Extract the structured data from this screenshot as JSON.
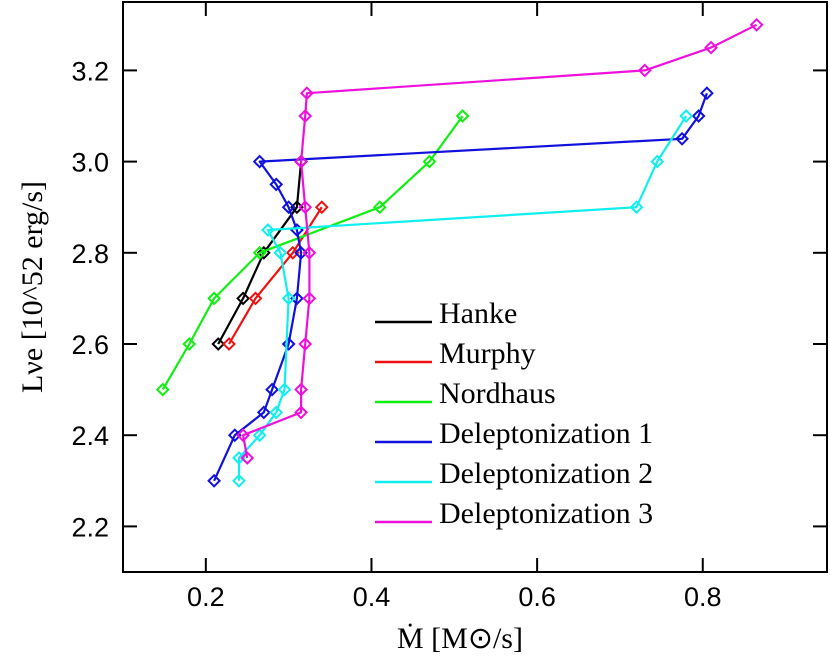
{
  "chart_data": {
    "type": "line",
    "xlabel": "Ṁ [M⊙/s]",
    "ylabel": "Lνe [10^52 erg/s]",
    "xlim": [
      0.1,
      0.95
    ],
    "ylim": [
      2.1,
      3.35
    ],
    "xticks": [
      0.2,
      0.4,
      0.6,
      0.8
    ],
    "xtick_labels": [
      "0.2",
      "0.4",
      "0.6",
      "0.8"
    ],
    "yticks": [
      2.2,
      2.4,
      2.6,
      2.8,
      3.0,
      3.2
    ],
    "ytick_labels": [
      "2.2",
      "2.4",
      "2.6",
      "2.8",
      "3.0",
      "3.2"
    ],
    "grid": false,
    "legend_position": "bottom-right",
    "marker": "diamond",
    "series": [
      {
        "name": "Hanke",
        "color": "#000000",
        "points": [
          [
            0.215,
            2.6
          ],
          [
            0.245,
            2.7
          ],
          [
            0.27,
            2.8
          ],
          [
            0.31,
            2.9
          ],
          [
            0.315,
            3.0
          ]
        ]
      },
      {
        "name": "Murphy",
        "color": "#ee1111",
        "points": [
          [
            0.228,
            2.6
          ],
          [
            0.26,
            2.7
          ],
          [
            0.305,
            2.8
          ],
          [
            0.34,
            2.9
          ]
        ]
      },
      {
        "name": "Nordhaus",
        "color": "#11ee11",
        "points": [
          [
            0.148,
            2.5
          ],
          [
            0.18,
            2.6
          ],
          [
            0.21,
            2.7
          ],
          [
            0.265,
            2.8
          ],
          [
            0.41,
            2.9
          ],
          [
            0.47,
            3.0
          ],
          [
            0.51,
            3.1
          ]
        ]
      },
      {
        "name": "Deleptonization 1",
        "color": "#1111dd",
        "points": [
          [
            0.21,
            2.3
          ],
          [
            0.235,
            2.4
          ],
          [
            0.27,
            2.45
          ],
          [
            0.28,
            2.5
          ],
          [
            0.3,
            2.6
          ],
          [
            0.31,
            2.7
          ],
          [
            0.315,
            2.8
          ],
          [
            0.31,
            2.85
          ],
          [
            0.3,
            2.9
          ],
          [
            0.285,
            2.95
          ],
          [
            0.265,
            3.0
          ],
          [
            0.775,
            3.05
          ],
          [
            0.795,
            3.1
          ],
          [
            0.805,
            3.15
          ]
        ]
      },
      {
        "name": "Deleptonization 2",
        "color": "#11eeee",
        "points": [
          [
            0.24,
            2.3
          ],
          [
            0.24,
            2.35
          ],
          [
            0.265,
            2.4
          ],
          [
            0.285,
            2.45
          ],
          [
            0.295,
            2.5
          ],
          [
            0.3,
            2.7
          ],
          [
            0.29,
            2.8
          ],
          [
            0.275,
            2.85
          ],
          [
            0.72,
            2.9
          ],
          [
            0.745,
            3.0
          ],
          [
            0.78,
            3.1
          ]
        ]
      },
      {
        "name": "Deleptonization 3",
        "color": "#ee11dd",
        "points": [
          [
            0.25,
            2.35
          ],
          [
            0.245,
            2.4
          ],
          [
            0.315,
            2.45
          ],
          [
            0.315,
            2.5
          ],
          [
            0.32,
            2.6
          ],
          [
            0.325,
            2.7
          ],
          [
            0.325,
            2.8
          ],
          [
            0.32,
            2.9
          ],
          [
            0.315,
            3.0
          ],
          [
            0.32,
            3.1
          ],
          [
            0.322,
            3.15
          ],
          [
            0.73,
            3.2
          ],
          [
            0.81,
            3.25
          ],
          [
            0.865,
            3.3
          ]
        ]
      }
    ]
  }
}
